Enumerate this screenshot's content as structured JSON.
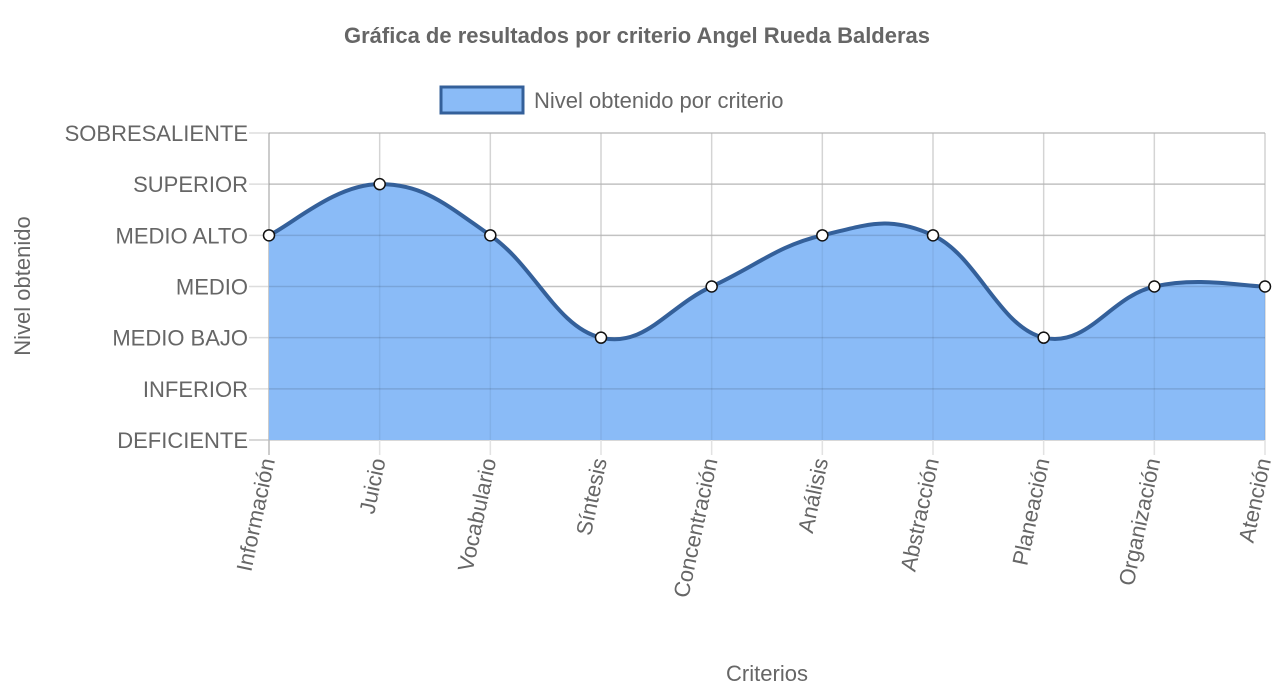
{
  "chart_data": {
    "type": "area",
    "title": "Gráfica de resultados por criterio Angel Rueda Balderas",
    "xlabel": "Criterios",
    "ylabel": "Nivel obtenido",
    "categories": [
      "Información",
      "Juicio",
      "Vocabulario",
      "Síntesis",
      "Concentración",
      "Análisis",
      "Abstracción",
      "Planeación",
      "Organización",
      "Atención"
    ],
    "levels": [
      "DEFICIENTE",
      "INFERIOR",
      "MEDIO BAJO",
      "MEDIO",
      "MEDIO ALTO",
      "SUPERIOR",
      "SOBRESALIENTE"
    ],
    "ylim": [
      0,
      6
    ],
    "series": [
      {
        "name": "Nivel obtenido por criterio",
        "values": [
          4,
          5,
          4,
          2,
          3,
          4,
          4,
          2,
          3,
          3
        ],
        "fill_color": "#8ABBF7",
        "line_color": "#34609A"
      }
    ],
    "legend_position": "top",
    "grid": true
  }
}
